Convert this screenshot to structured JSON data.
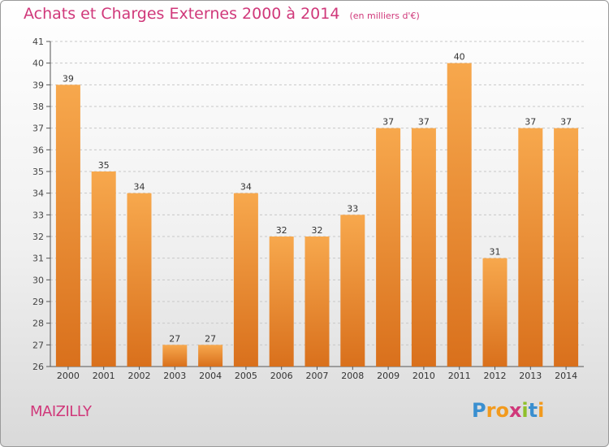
{
  "title": "Achats et Charges Externes 2000 à 2014",
  "unit": "(en milliers d'€)",
  "commune": "MAIZILLY",
  "logo": {
    "letters": [
      "P",
      "r",
      "o",
      "x",
      "i",
      "t",
      "i"
    ],
    "colors": [
      "#3a8fd0",
      "#f29a1d",
      "#f29a1d",
      "#d0387a",
      "#8fbf2a",
      "#3a8fd0",
      "#f29a1d"
    ]
  },
  "colors": {
    "bar_top": "#f7a84d",
    "bar_bottom": "#d9701c",
    "accent": "#d0387a"
  },
  "chart_data": {
    "type": "bar",
    "categories": [
      "2000",
      "2001",
      "2002",
      "2003",
      "2004",
      "2005",
      "2006",
      "2007",
      "2008",
      "2009",
      "2010",
      "2011",
      "2012",
      "2013",
      "2014"
    ],
    "values": [
      39,
      35,
      34,
      27,
      27,
      34,
      32,
      32,
      33,
      37,
      37,
      40,
      31,
      37,
      37
    ],
    "title": "Achats et Charges Externes 2000 à 2014",
    "xlabel": "",
    "ylabel": "",
    "ylim": [
      26,
      41
    ],
    "yticks": [
      26,
      27,
      28,
      29,
      30,
      31,
      32,
      33,
      34,
      35,
      36,
      37,
      38,
      39,
      40,
      41
    ],
    "grid": "horizontal dashed",
    "legend": "none",
    "data_labels": true
  }
}
